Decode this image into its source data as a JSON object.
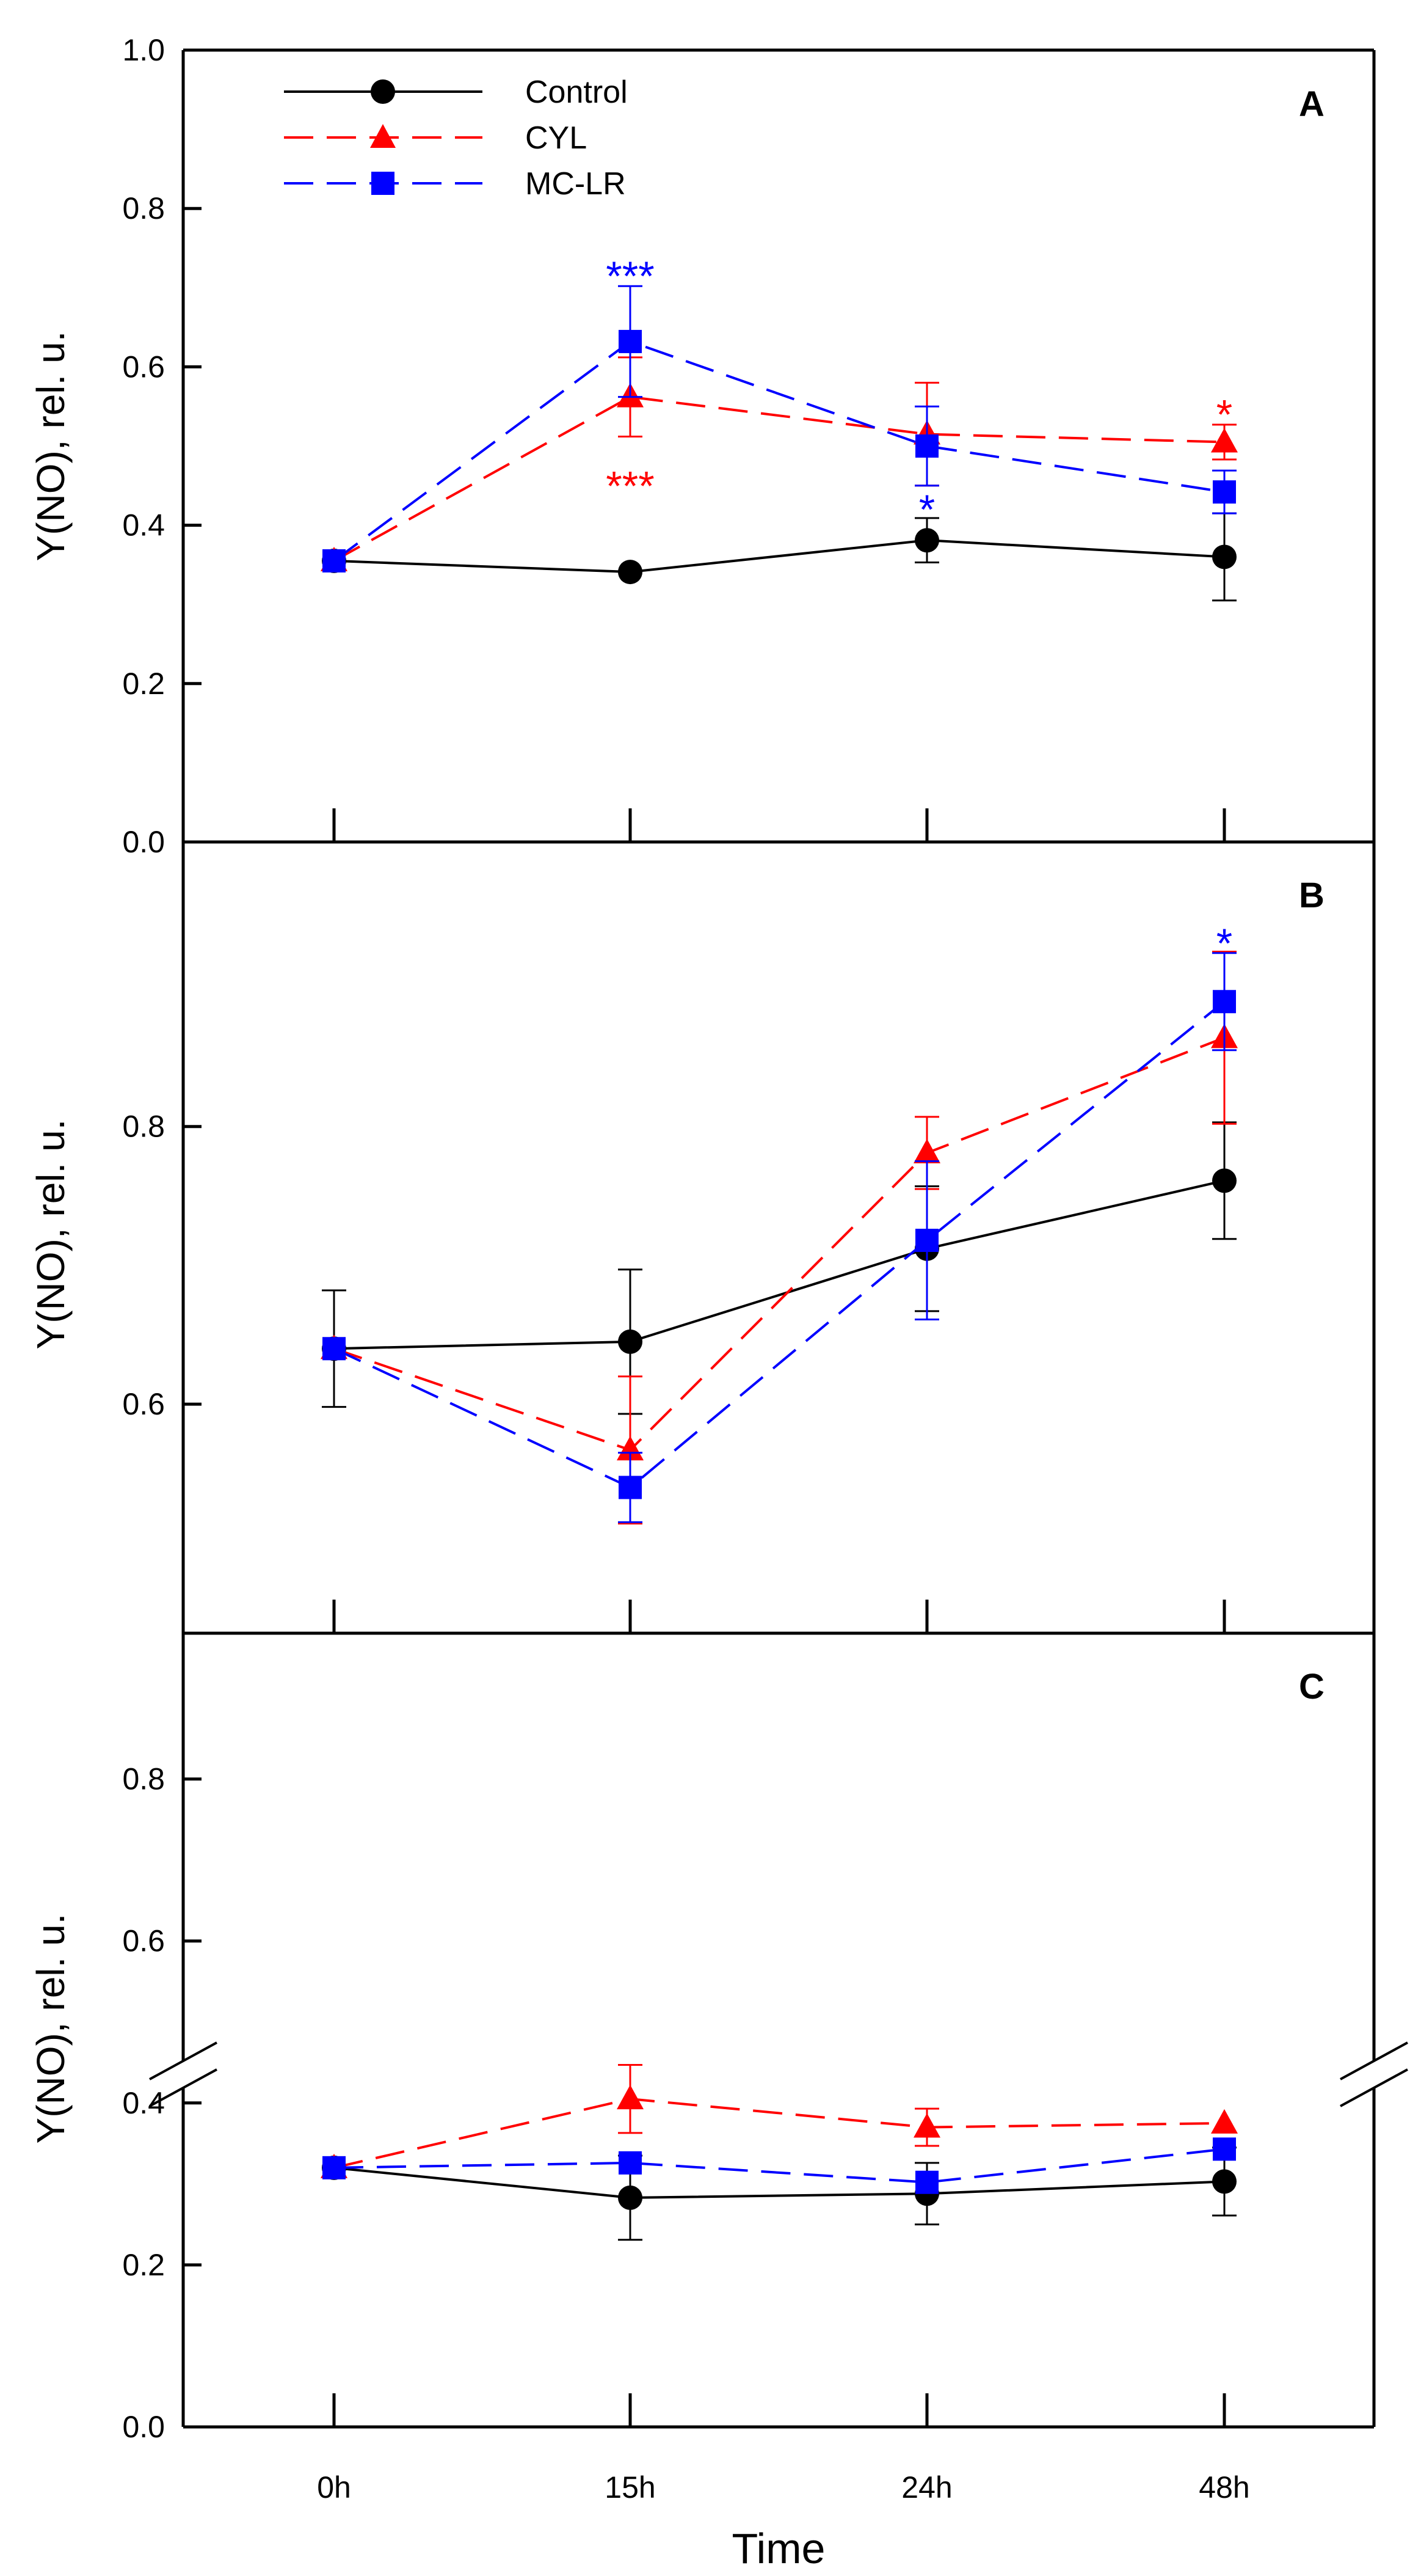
{
  "chart_data": [
    {
      "type": "line",
      "panel": "A",
      "ylabel": "Y(NO), rel. u.",
      "ylim": [
        0.0,
        1.0
      ],
      "yticks": [
        0.0,
        0.2,
        0.4,
        0.6,
        0.8,
        1.0
      ],
      "ytick_labels": [
        "0.0",
        "0.2",
        "0.4",
        "0.6",
        "0.8",
        "1.0"
      ],
      "categories": [
        "0h",
        "15h",
        "24h",
        "48h"
      ],
      "legend": {
        "position": "top-left",
        "entries": [
          "Control",
          "CYL",
          "MC-LR"
        ]
      },
      "series": [
        {
          "name": "Control",
          "color": "#000000",
          "marker": "circle",
          "dash": "solid",
          "values": [
            0.355,
            0.341,
            0.381,
            0.36
          ],
          "errors": [
            0.0,
            0.0,
            0.028,
            0.055
          ]
        },
        {
          "name": "CYL",
          "color": "#ff0000",
          "marker": "triangle",
          "dash": "dashed",
          "values": [
            0.355,
            0.562,
            0.515,
            0.505
          ],
          "errors": [
            0.0,
            0.05,
            0.065,
            0.022
          ]
        },
        {
          "name": "MC-LR",
          "color": "#0000ff",
          "marker": "square",
          "dash": "dashed",
          "values": [
            0.355,
            0.632,
            0.5,
            0.442
          ],
          "errors": [
            0.0,
            0.07,
            0.05,
            0.027
          ]
        }
      ],
      "annotations": [
        {
          "text": "***",
          "color": "#0000ff",
          "category": "15h",
          "y": 0.72
        },
        {
          "text": "***",
          "color": "#ff0000",
          "category": "15h",
          "y": 0.455
        },
        {
          "text": "*",
          "color": "#0000ff",
          "category": "24h",
          "y": 0.425
        },
        {
          "text": "*",
          "color": "#ff0000",
          "category": "48h",
          "y": 0.545
        }
      ]
    },
    {
      "type": "line",
      "panel": "B",
      "ylabel": "Y(NO), rel. u.",
      "ylim": [
        0.435,
        1.005
      ],
      "yticks": [
        0.6,
        0.8
      ],
      "ytick_labels": [
        "0.6",
        "0.8"
      ],
      "categories": [
        "0h",
        "15h",
        "24h",
        "48h"
      ],
      "series": [
        {
          "name": "Control",
          "color": "#000000",
          "marker": "circle",
          "dash": "solid",
          "values": [
            0.64,
            0.645,
            0.712,
            0.761
          ],
          "errors": [
            0.042,
            0.052,
            0.045,
            0.042
          ]
        },
        {
          "name": "CYL",
          "color": "#ff0000",
          "marker": "triangle",
          "dash": "dashed",
          "values": [
            0.64,
            0.567,
            0.781,
            0.864
          ],
          "errors": [
            0.0,
            0.053,
            0.026,
            0.062
          ]
        },
        {
          "name": "MC-LR",
          "color": "#0000ff",
          "marker": "square",
          "dash": "dashed",
          "values": [
            0.64,
            0.54,
            0.718,
            0.89
          ],
          "errors": [
            0.0,
            0.025,
            0.057,
            0.035
          ]
        }
      ],
      "annotations": [
        {
          "text": "*",
          "color": "#0000ff",
          "category": "48h",
          "y": 0.935
        }
      ]
    },
    {
      "type": "line",
      "panel": "C",
      "ylabel": "Y(NO), rel. u.",
      "xlabel": "Time",
      "ylim": [
        0.0,
        0.98
      ],
      "axis_break": true,
      "yticks": [
        0.0,
        0.2,
        0.4,
        0.6,
        0.8
      ],
      "ytick_labels": [
        "0.0",
        "0.2",
        "0.4",
        "0.6",
        "0.8"
      ],
      "categories": [
        "0h",
        "15h",
        "24h",
        "48h"
      ],
      "series": [
        {
          "name": "Control",
          "color": "#000000",
          "marker": "circle",
          "dash": "solid",
          "values": [
            0.32,
            0.283,
            0.288,
            0.303
          ],
          "errors": [
            0.0,
            0.052,
            0.038,
            0.042
          ]
        },
        {
          "name": "CYL",
          "color": "#ff0000",
          "marker": "triangle",
          "dash": "dashed",
          "values": [
            0.32,
            0.405,
            0.37,
            0.375
          ],
          "errors": [
            0.0,
            0.042,
            0.023,
            0.0
          ]
        },
        {
          "name": "MC-LR",
          "color": "#0000ff",
          "marker": "square",
          "dash": "dashed",
          "values": [
            0.32,
            0.326,
            0.302,
            0.343
          ],
          "errors": [
            0.0,
            0.0,
            0.0,
            0.0
          ]
        }
      ],
      "annotations": []
    }
  ]
}
